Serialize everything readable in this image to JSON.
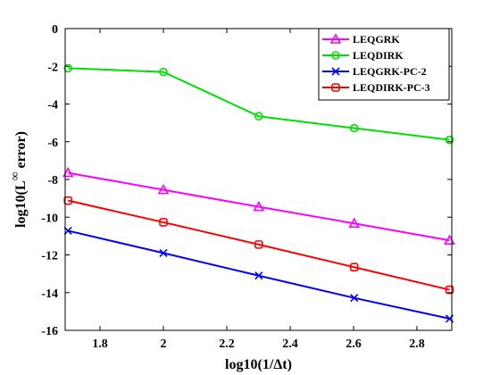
{
  "chart_data": {
    "type": "line",
    "title": "",
    "xlabel": "log10(1/Δt)",
    "ylabel_prefix": "log10(L",
    "ylabel_sup": "∞",
    "ylabel_suffix": " error)",
    "xlim": [
      1.69,
      2.91
    ],
    "ylim": [
      -16,
      0
    ],
    "xticks": [
      1.8,
      2.0,
      2.2,
      2.4,
      2.6,
      2.8
    ],
    "xtick_labels": [
      "1.8",
      "2",
      "2.2",
      "2.4",
      "2.6",
      "2.8"
    ],
    "yticks": [
      0,
      -2,
      -4,
      -6,
      -8,
      -10,
      -12,
      -14,
      -16
    ],
    "ytick_labels": [
      "0",
      "-2",
      "-4",
      "-6",
      "-8",
      "-10",
      "-12",
      "-14",
      "-16"
    ],
    "grid": false,
    "legend_position": "top-right",
    "x": [
      1.699,
      2.0,
      2.301,
      2.602,
      2.903
    ],
    "series": [
      {
        "name": "LEQGRK",
        "color": "#ff00ff",
        "marker": "triangle",
        "values": [
          -7.65,
          -8.55,
          -9.45,
          -10.33,
          -11.23
        ]
      },
      {
        "name": "LEQDIRK",
        "color": "#00e000",
        "marker": "circle",
        "values": [
          -2.1,
          -2.3,
          -4.65,
          -5.28,
          -5.9
        ]
      },
      {
        "name": "LEQGRK-PC-2",
        "color": "#0000ff",
        "marker": "x",
        "values": [
          -10.72,
          -11.9,
          -13.1,
          -14.28,
          -15.38
        ]
      },
      {
        "name": "LEQDIRK-PC-3",
        "color": "#ff0000",
        "marker": "square",
        "values": [
          -9.12,
          -10.27,
          -11.45,
          -12.65,
          -13.85
        ]
      }
    ]
  }
}
